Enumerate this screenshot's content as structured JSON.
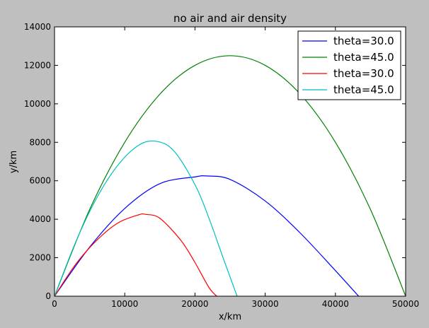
{
  "chart_data": {
    "type": "line",
    "title": "no air and air density",
    "xlabel": "x/km",
    "ylabel": "y/km",
    "xlim": [
      0,
      50000
    ],
    "ylim": [
      0,
      14000
    ],
    "xticks": [
      "0",
      "10000",
      "20000",
      "30000",
      "40000",
      "50000"
    ],
    "yticks": [
      "0",
      "2000",
      "4000",
      "6000",
      "8000",
      "10000",
      "12000",
      "14000"
    ],
    "grid": false,
    "legend": "top-right",
    "series": [
      {
        "name": "theta=30.0",
        "color": "#0000ff",
        "x": [
          0,
          5000,
          10000,
          15000,
          20000,
          21650,
          25000,
          30000,
          35000,
          40000,
          43300
        ],
        "y": [
          0,
          2550,
          4560,
          5850,
          6200,
          6250,
          6070,
          4950,
          3280,
          1330,
          0
        ]
      },
      {
        "name": "theta=45.0",
        "color": "#008000",
        "x": [
          0,
          5000,
          10000,
          15000,
          20000,
          25000,
          30000,
          35000,
          40000,
          45000,
          50000
        ],
        "y": [
          0,
          4500,
          8000,
          10500,
          12000,
          12500,
          12000,
          10500,
          8000,
          4500,
          0
        ]
      },
      {
        "name": "theta=30.0",
        "color": "#ff0000",
        "x": [
          0,
          3000,
          6000,
          9000,
          12000,
          13000,
          15000,
          18000,
          20000,
          22000,
          23100
        ],
        "y": [
          0,
          1650,
          2900,
          3800,
          4230,
          4250,
          4050,
          2900,
          1750,
          450,
          0
        ]
      },
      {
        "name": "theta=45.0",
        "color": "#00bfbf",
        "x": [
          0,
          3000,
          6000,
          9000,
          12000,
          14500,
          17000,
          20000,
          22000,
          24000,
          26000
        ],
        "y": [
          0,
          2800,
          5100,
          6800,
          7850,
          8050,
          7550,
          5800,
          4050,
          2000,
          0
        ]
      }
    ]
  }
}
